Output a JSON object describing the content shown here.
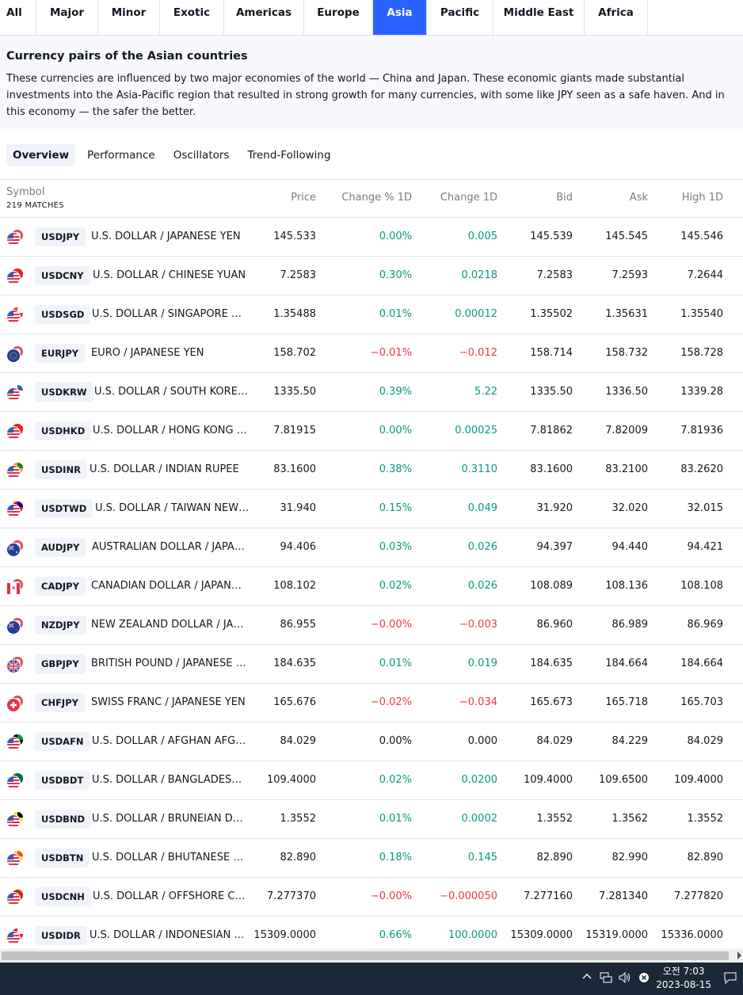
{
  "region_tabs": [
    {
      "label": "All",
      "active": false
    },
    {
      "label": "Major",
      "active": false
    },
    {
      "label": "Minor",
      "active": false
    },
    {
      "label": "Exotic",
      "active": false
    },
    {
      "label": "Americas",
      "active": false
    },
    {
      "label": "Europe",
      "active": false
    },
    {
      "label": "Asia",
      "active": true
    },
    {
      "label": "Pacific",
      "active": false
    },
    {
      "label": "Middle East",
      "active": false
    },
    {
      "label": "Africa",
      "active": false
    }
  ],
  "description": {
    "title": "Currency pairs of the Asian countries",
    "text": "These currencies are influenced by two major economies of the world — China and Japan. These economic giants made substantial investments into the Asia-Pacific region that resulted in strong growth for many currencies, with some like JPY seen as a safe haven. And in this economy — the safer the better."
  },
  "sub_tabs": [
    {
      "label": "Overview",
      "active": true
    },
    {
      "label": "Performance",
      "active": false
    },
    {
      "label": "Oscillators",
      "active": false
    },
    {
      "label": "Trend-Following",
      "active": false
    }
  ],
  "table": {
    "headers": {
      "symbol": "Symbol",
      "matches": "219 MATCHES",
      "price": "Price",
      "change_pct": "Change % 1D",
      "change": "Change 1D",
      "bid": "Bid",
      "ask": "Ask",
      "high": "High 1D"
    },
    "rows": [
      {
        "ticker": "USDJPY",
        "name": "U.S. DOLLAR / JAPANESE YEN",
        "flag": "us-jp-flag-icon",
        "price": "145.533",
        "change_pct": "0.00%",
        "change": "0.005",
        "bid": "145.539",
        "ask": "145.545",
        "high": "145.546",
        "dir_pct": "pos",
        "dir_ch": "pos"
      },
      {
        "ticker": "USDCNY",
        "name": "U.S. DOLLAR / CHINESE YUAN",
        "flag": "us-cn-flag-icon",
        "price": "7.2583",
        "change_pct": "0.30%",
        "change": "0.0218",
        "bid": "7.2583",
        "ask": "7.2593",
        "high": "7.2644",
        "dir_pct": "pos",
        "dir_ch": "pos"
      },
      {
        "ticker": "USDSGD",
        "name": "U.S. DOLLAR / SINGAPORE DOLLAR",
        "flag": "us-sg-flag-icon",
        "price": "1.35488",
        "change_pct": "0.01%",
        "change": "0.00012",
        "bid": "1.35502",
        "ask": "1.35631",
        "high": "1.35540",
        "dir_pct": "pos",
        "dir_ch": "pos"
      },
      {
        "ticker": "EURJPY",
        "name": "EURO / JAPANESE YEN",
        "flag": "eu-jp-flag-icon",
        "price": "158.702",
        "change_pct": "−0.01%",
        "change": "−0.012",
        "bid": "158.714",
        "ask": "158.732",
        "high": "158.728",
        "dir_pct": "neg",
        "dir_ch": "neg"
      },
      {
        "ticker": "USDKRW",
        "name": "U.S. DOLLAR / SOUTH KOREAN WON",
        "flag": "us-kr-flag-icon",
        "price": "1335.50",
        "change_pct": "0.39%",
        "change": "5.22",
        "bid": "1335.50",
        "ask": "1336.50",
        "high": "1339.28",
        "dir_pct": "pos",
        "dir_ch": "pos"
      },
      {
        "ticker": "USDHKD",
        "name": "U.S. DOLLAR / HONG KONG DOLLAR",
        "flag": "us-hk-flag-icon",
        "price": "7.81915",
        "change_pct": "0.00%",
        "change": "0.00025",
        "bid": "7.81862",
        "ask": "7.82009",
        "high": "7.81936",
        "dir_pct": "pos",
        "dir_ch": "pos"
      },
      {
        "ticker": "USDINR",
        "name": "U.S. DOLLAR / INDIAN RUPEE",
        "flag": "us-in-flag-icon",
        "price": "83.1600",
        "change_pct": "0.38%",
        "change": "0.3110",
        "bid": "83.1600",
        "ask": "83.2100",
        "high": "83.2620",
        "dir_pct": "pos",
        "dir_ch": "pos"
      },
      {
        "ticker": "USDTWD",
        "name": "U.S. DOLLAR / TAIWAN NEW DOLLAR",
        "flag": "us-tw-flag-icon",
        "price": "31.940",
        "change_pct": "0.15%",
        "change": "0.049",
        "bid": "31.920",
        "ask": "32.020",
        "high": "32.015",
        "dir_pct": "pos",
        "dir_ch": "pos"
      },
      {
        "ticker": "AUDJPY",
        "name": "AUSTRALIAN DOLLAR / JAPANESE YEN",
        "flag": "au-jp-flag-icon",
        "price": "94.406",
        "change_pct": "0.03%",
        "change": "0.026",
        "bid": "94.397",
        "ask": "94.440",
        "high": "94.421",
        "dir_pct": "pos",
        "dir_ch": "pos"
      },
      {
        "ticker": "CADJPY",
        "name": "CANADIAN DOLLAR / JAPANESE YEN",
        "flag": "ca-jp-flag-icon",
        "price": "108.102",
        "change_pct": "0.02%",
        "change": "0.026",
        "bid": "108.089",
        "ask": "108.136",
        "high": "108.108",
        "dir_pct": "pos",
        "dir_ch": "pos"
      },
      {
        "ticker": "NZDJPY",
        "name": "NEW ZEALAND DOLLAR / JAPANESE YEN",
        "flag": "nz-jp-flag-icon",
        "price": "86.955",
        "change_pct": "−0.00%",
        "change": "−0.003",
        "bid": "86.960",
        "ask": "86.989",
        "high": "86.969",
        "dir_pct": "neg",
        "dir_ch": "neg"
      },
      {
        "ticker": "GBPJPY",
        "name": "BRITISH POUND / JAPANESE YEN",
        "flag": "gb-jp-flag-icon",
        "price": "184.635",
        "change_pct": "0.01%",
        "change": "0.019",
        "bid": "184.635",
        "ask": "184.664",
        "high": "184.664",
        "dir_pct": "pos",
        "dir_ch": "pos"
      },
      {
        "ticker": "CHFJPY",
        "name": "SWISS FRANC / JAPANESE YEN",
        "flag": "ch-jp-flag-icon",
        "price": "165.676",
        "change_pct": "−0.02%",
        "change": "−0.034",
        "bid": "165.673",
        "ask": "165.718",
        "high": "165.703",
        "dir_pct": "neg",
        "dir_ch": "neg"
      },
      {
        "ticker": "USDAFN",
        "name": "U.S. DOLLAR / AFGHAN AFGHANI",
        "flag": "us-af-flag-icon",
        "price": "84.029",
        "change_pct": "0.00%",
        "change": "0.000",
        "bid": "84.029",
        "ask": "84.229",
        "high": "84.029",
        "dir_pct": "neu",
        "dir_ch": "neu"
      },
      {
        "ticker": "USDBDT",
        "name": "U.S. DOLLAR / BANGLADESHI TAKA",
        "flag": "us-bd-flag-icon",
        "price": "109.4000",
        "change_pct": "0.02%",
        "change": "0.0200",
        "bid": "109.4000",
        "ask": "109.6500",
        "high": "109.4000",
        "dir_pct": "pos",
        "dir_ch": "pos"
      },
      {
        "ticker": "USDBND",
        "name": "U.S. DOLLAR / BRUNEIAN DOLLAR",
        "flag": "us-bn-flag-icon",
        "price": "1.3552",
        "change_pct": "0.01%",
        "change": "0.0002",
        "bid": "1.3552",
        "ask": "1.3562",
        "high": "1.3552",
        "dir_pct": "pos",
        "dir_ch": "pos"
      },
      {
        "ticker": "USDBTN",
        "name": "U.S. DOLLAR / BHUTANESE NGULTRUM",
        "flag": "us-bt-flag-icon",
        "price": "82.890",
        "change_pct": "0.18%",
        "change": "0.145",
        "bid": "82.890",
        "ask": "82.990",
        "high": "82.890",
        "dir_pct": "pos",
        "dir_ch": "pos"
      },
      {
        "ticker": "USDCNH",
        "name": "U.S. DOLLAR / OFFSHORE CHINESE YUAN",
        "flag": "us-cn-flag-icon",
        "price": "7.277370",
        "change_pct": "−0.00%",
        "change": "−0.000050",
        "bid": "7.277160",
        "ask": "7.281340",
        "high": "7.277820",
        "dir_pct": "neg",
        "dir_ch": "neg"
      },
      {
        "ticker": "USDIDR",
        "name": "U.S. DOLLAR / INDONESIAN RUPIAH",
        "flag": "us-id-flag-icon",
        "price": "15309.0000",
        "change_pct": "0.66%",
        "change": "100.0000",
        "bid": "15309.0000",
        "ask": "15319.0000",
        "high": "15336.0000",
        "dir_pct": "pos",
        "dir_ch": "pos"
      }
    ]
  },
  "colors": {
    "accent": "#2962ff",
    "positive": "#089981",
    "negative": "#f23645",
    "taskbar": "#1b2838"
  },
  "taskbar": {
    "time": "오전 7:03",
    "date": "2023-08-15",
    "icons": [
      "chevron-up-icon",
      "network-icon",
      "volume-icon",
      "close-circle-icon",
      "notification-icon"
    ]
  }
}
